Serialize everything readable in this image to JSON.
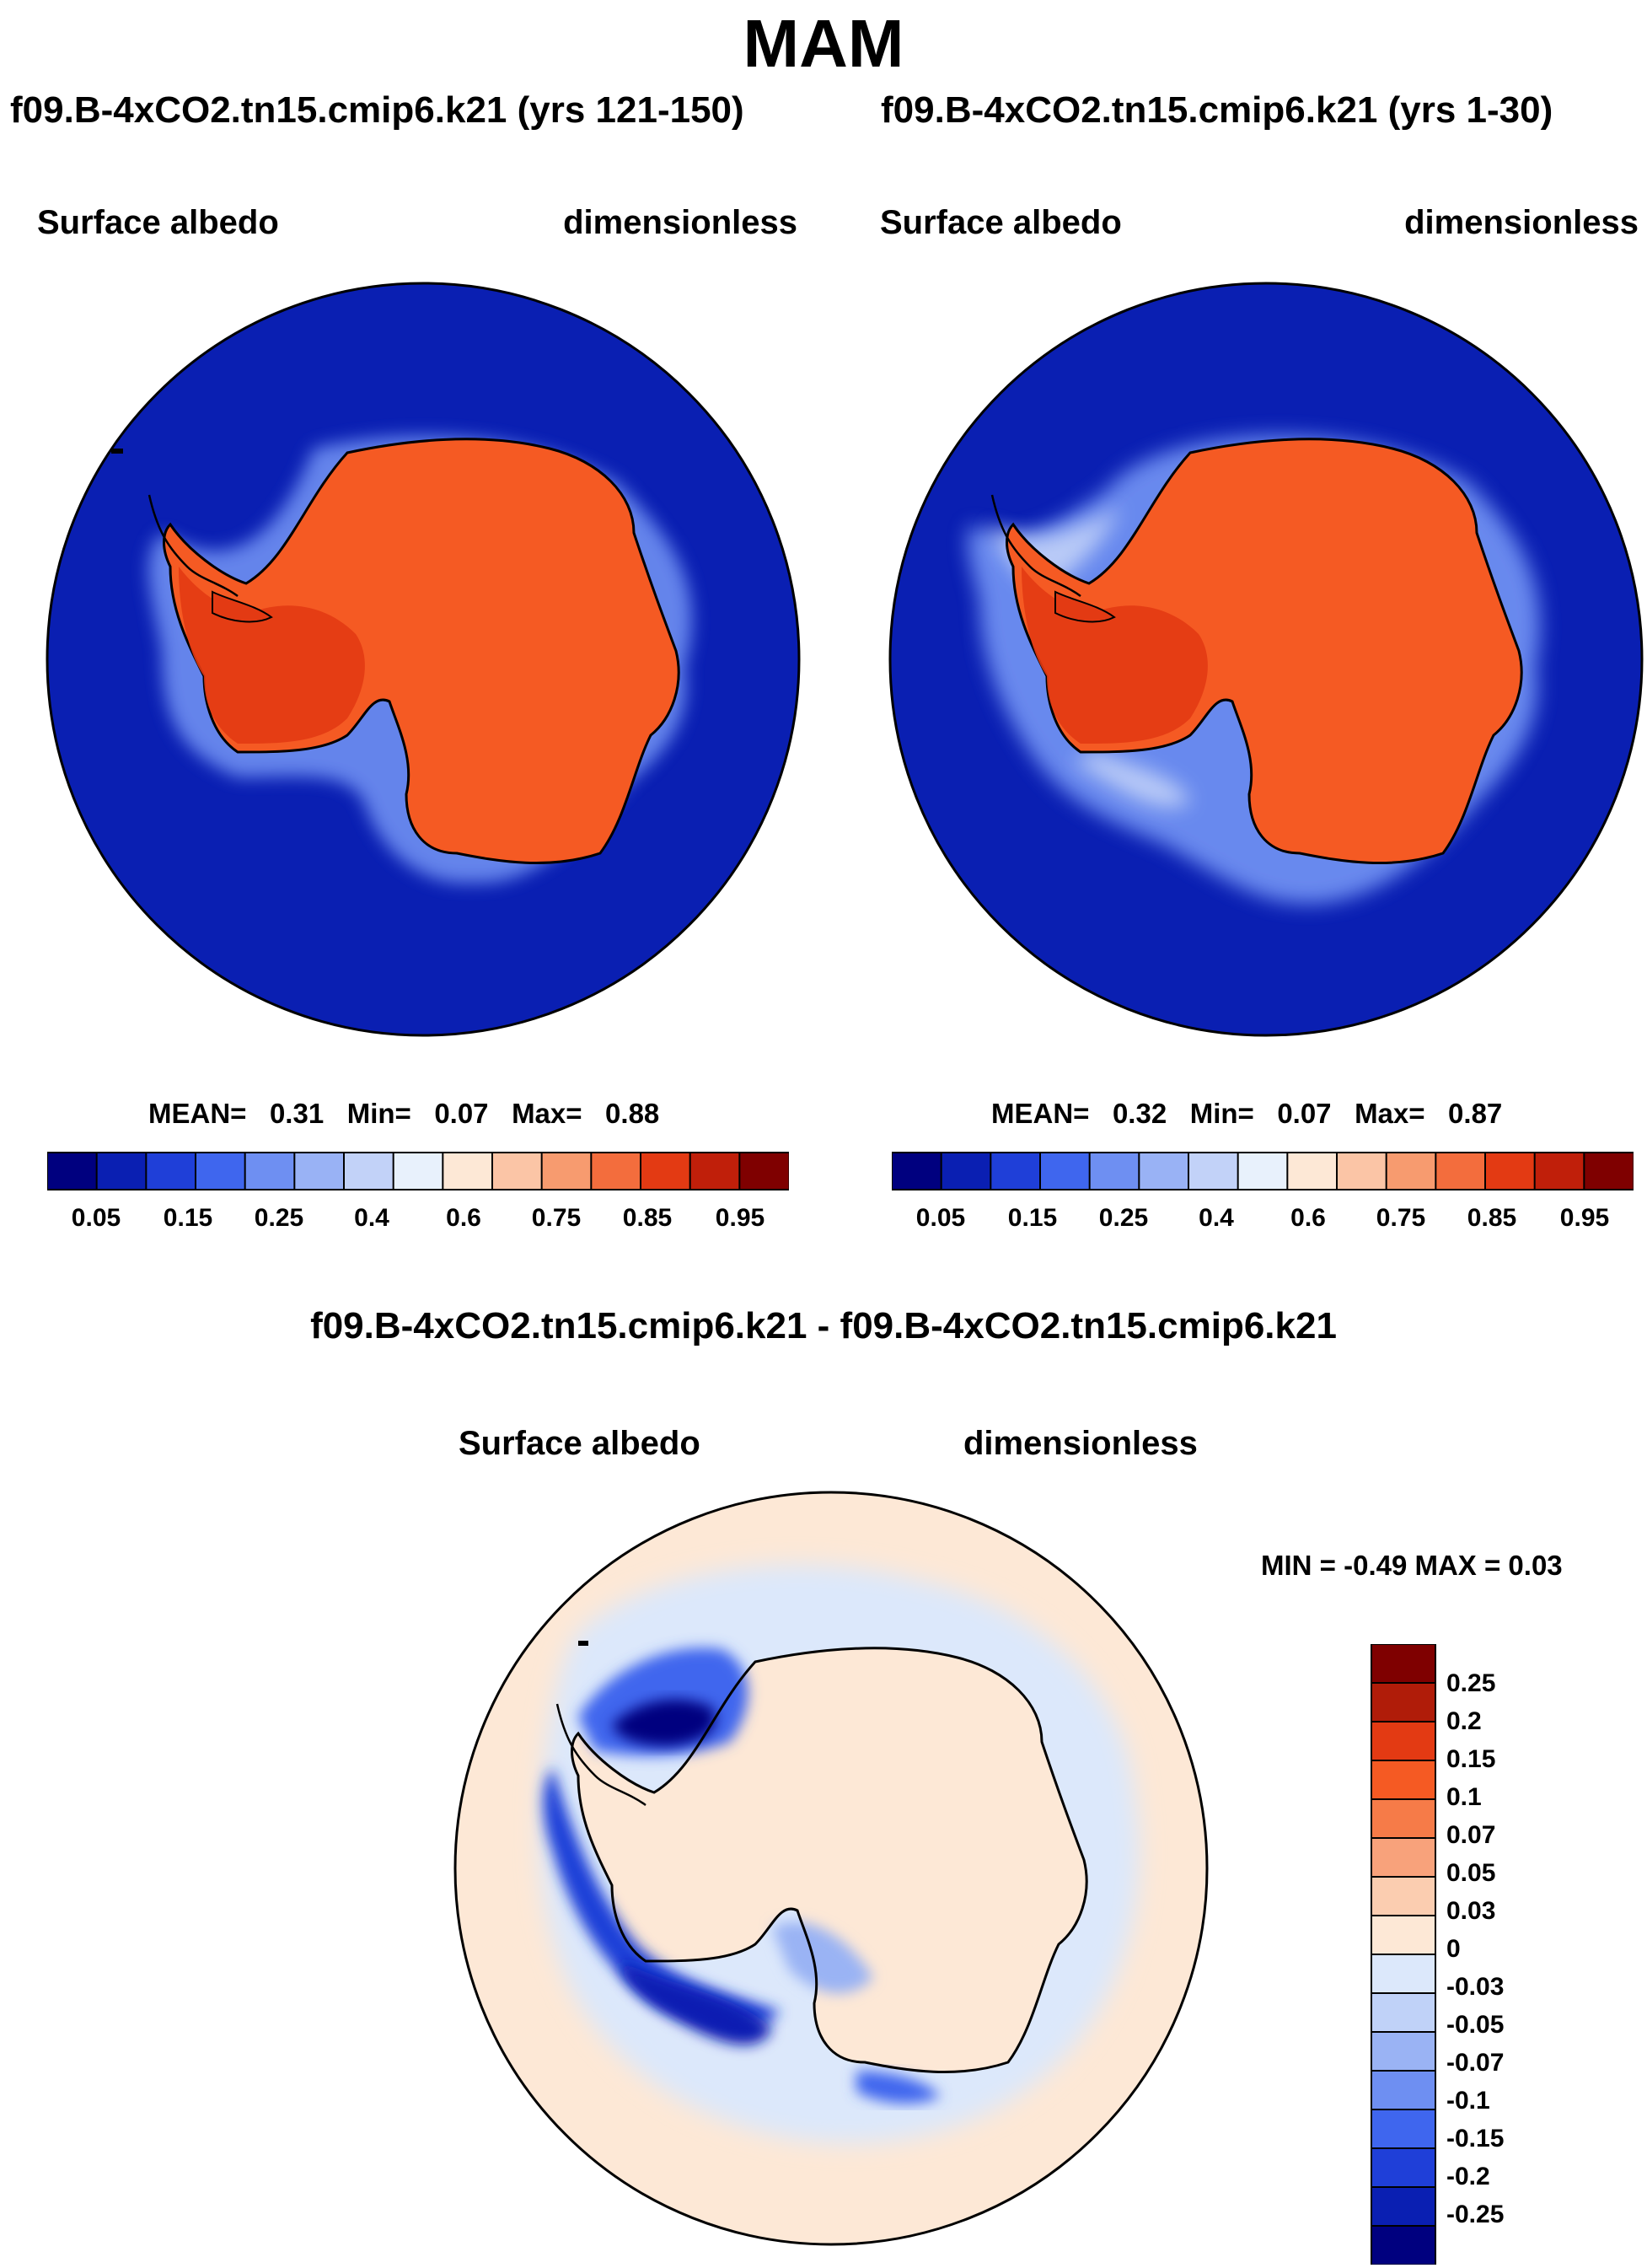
{
  "title": "MAM",
  "panels": [
    {
      "case_title": "f09.B-4xCO2.tn15.cmip6.k21 (yrs 121-150)",
      "variable": "Surface albedo",
      "units": "dimensionless",
      "stats": {
        "mean_label": "MEAN=",
        "mean": "0.31",
        "min_label": "Min=",
        "min": "0.07",
        "max_label": "Max=",
        "max": "0.88"
      },
      "colorbar_ticks": [
        "0.05",
        "0.15",
        "0.25",
        "0.4",
        "0.6",
        "0.75",
        "0.85",
        "0.95"
      ]
    },
    {
      "case_title": "f09.B-4xCO2.tn15.cmip6.k21 (yrs 1-30)",
      "variable": "Surface albedo",
      "units": "dimensionless",
      "stats": {
        "mean_label": "MEAN=",
        "mean": "0.32",
        "min_label": "Min=",
        "min": "0.07",
        "max_label": "Max=",
        "max": "0.87"
      },
      "colorbar_ticks": [
        "0.05",
        "0.15",
        "0.25",
        "0.4",
        "0.6",
        "0.75",
        "0.85",
        "0.95"
      ]
    }
  ],
  "diff": {
    "title": "f09.B-4xCO2.tn15.cmip6.k21 - f09.B-4xCO2.tn15.cmip6.k21",
    "variable": "Surface albedo",
    "units": "dimensionless",
    "minmax": "MIN =  -0.49 MAX =   0.03",
    "colorbar_labels": [
      "0.25",
      "0.2",
      "0.15",
      "0.1",
      "0.07",
      "0.05",
      "0.03",
      "0",
      "-0.03",
      "-0.05",
      "-0.07",
      "-0.1",
      "-0.15",
      "-0.2",
      "-0.25"
    ]
  },
  "colors": {
    "seq_palette": [
      "#00007f",
      "#0a1fb2",
      "#1f3fd8",
      "#3f66ee",
      "#6e8ff2",
      "#99b2f5",
      "#c2d2f8",
      "#e8f1fc",
      "#fde8d6",
      "#fbc5a6",
      "#f79b6f",
      "#f36d3d",
      "#e33a13",
      "#c01f0a",
      "#7f0000"
    ],
    "diff_palette": [
      "#7f0000",
      "#b01c09",
      "#e33a13",
      "#f55a23",
      "#f67b48",
      "#f8a27b",
      "#fbcdb0",
      "#fde8d6",
      "#dce8fb",
      "#c0d2f8",
      "#9ab3f4",
      "#6e8ff2",
      "#3f66ee",
      "#1f3fd8",
      "#0a1fb2",
      "#00007f"
    ],
    "ocean": "#0a1fb2",
    "ice_edge": "#f7f7ff",
    "land_a": "#f55a23",
    "land_b": "#e33a13",
    "diff_bg": "#fde8d6",
    "diff_light": "#dce8fb"
  }
}
